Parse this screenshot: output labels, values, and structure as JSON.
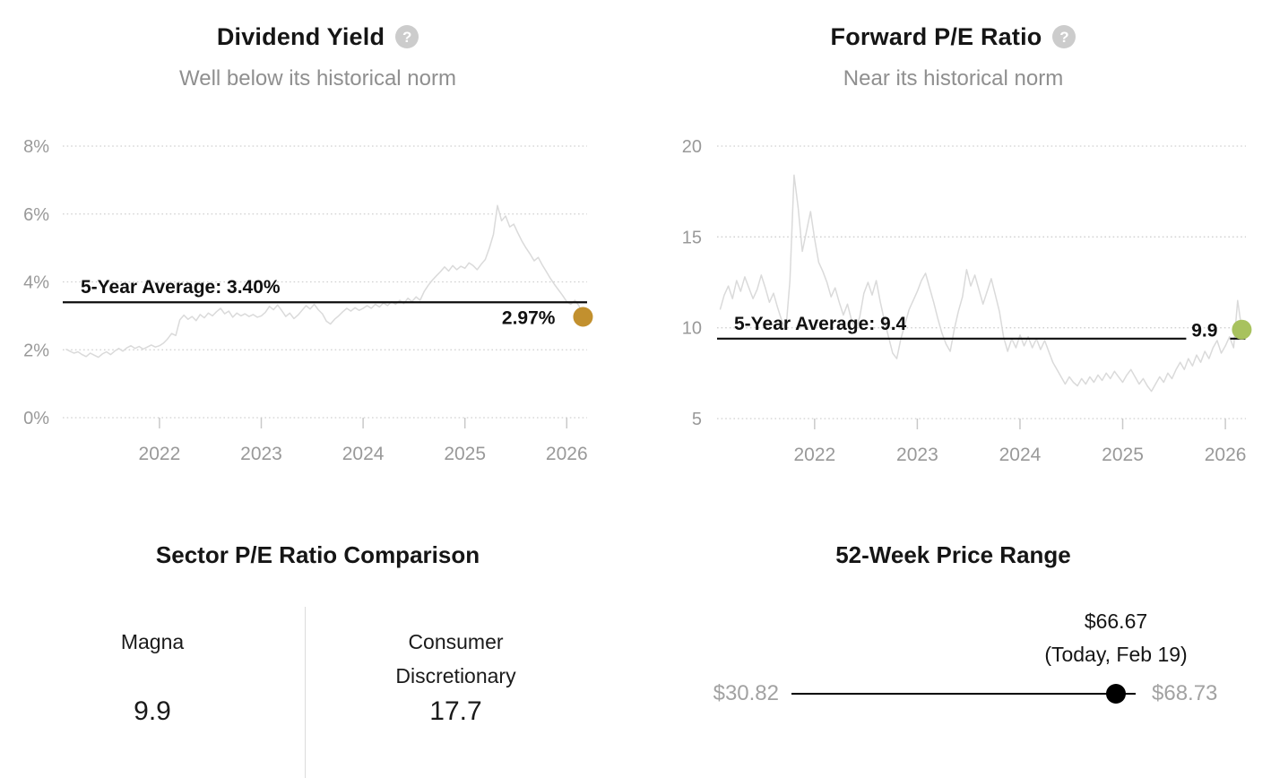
{
  "panels": {
    "dividend_yield": {
      "title": "Dividend Yield",
      "help_glyph": "?",
      "subtitle": "Well below its historical norm"
    },
    "forward_pe": {
      "title": "Forward P/E Ratio",
      "help_glyph": "?",
      "subtitle": "Near its historical norm"
    },
    "sector_comparison": {
      "title": "Sector P/E Ratio Comparison",
      "columns": [
        {
          "label": "Magna",
          "value": "9.9"
        },
        {
          "label": "Consumer Discretionary",
          "value": "17.7"
        }
      ]
    },
    "price_range": {
      "title": "52-Week Price Range",
      "low": "$30.82",
      "high": "$68.73",
      "current_price": "$66.67",
      "current_note": "(Today, Feb 19)"
    }
  },
  "chart_data": [
    {
      "id": "dividend_yield",
      "type": "line",
      "title": "Dividend Yield",
      "subtitle": "Well below its historical norm",
      "ylim": [
        0,
        8
      ],
      "yticks": [
        0,
        2,
        4,
        6,
        8
      ],
      "ytick_labels": [
        "0%",
        "2%",
        "4%",
        "6%",
        "8%"
      ],
      "xlim": [
        2021.05,
        2026.2
      ],
      "xticks": [
        2022,
        2023,
        2024,
        2025,
        2026
      ],
      "xtick_labels": [
        "2022",
        "2023",
        "2024",
        "2025",
        "2026"
      ],
      "grid": "dotted-horizontal",
      "legend": "none",
      "line_color": "#dadada",
      "average": {
        "value": 3.4,
        "label": "5-Year Average: 3.40%"
      },
      "current": {
        "value": 2.97,
        "label": "2.97%",
        "dot_color": "#c2902e"
      },
      "x_start": 2021.08,
      "x_step": 0.04,
      "y": [
        2.02,
        1.96,
        1.9,
        1.94,
        1.86,
        1.8,
        1.9,
        1.84,
        1.78,
        1.88,
        1.94,
        1.86,
        1.96,
        2.04,
        1.96,
        2.06,
        2.12,
        2.04,
        2.1,
        2.02,
        2.08,
        2.14,
        2.08,
        2.12,
        2.2,
        2.32,
        2.48,
        2.42,
        2.88,
        3.02,
        2.9,
        2.98,
        2.86,
        3.04,
        2.94,
        3.08,
        3.0,
        3.12,
        3.22,
        3.06,
        3.14,
        2.96,
        3.08,
        3.0,
        3.06,
        2.98,
        3.04,
        2.96,
        3.0,
        3.1,
        3.28,
        3.18,
        3.32,
        3.16,
        2.98,
        3.08,
        2.92,
        3.02,
        3.16,
        3.3,
        3.2,
        3.34,
        3.18,
        3.06,
        2.84,
        2.76,
        2.9,
        3.0,
        3.12,
        3.22,
        3.14,
        3.24,
        3.16,
        3.22,
        3.3,
        3.22,
        3.34,
        3.26,
        3.38,
        3.3,
        3.42,
        3.34,
        3.46,
        3.36,
        3.52,
        3.42,
        3.56,
        3.46,
        3.72,
        3.9,
        4.05,
        4.18,
        4.3,
        4.44,
        4.32,
        4.48,
        4.36,
        4.46,
        4.4,
        4.56,
        4.48,
        4.36,
        4.52,
        4.66,
        5.0,
        5.4,
        6.25,
        5.8,
        5.94,
        5.62,
        5.7,
        5.44,
        5.2,
        5.0,
        4.82,
        4.62,
        4.72,
        4.5,
        4.3,
        4.1,
        3.92,
        3.76,
        3.6,
        3.42,
        3.34,
        3.46,
        3.3,
        2.97
      ]
    },
    {
      "id": "forward_pe",
      "type": "line",
      "title": "Forward P/E Ratio",
      "subtitle": "Near its historical norm",
      "ylim": [
        5,
        20
      ],
      "yticks": [
        5,
        10,
        15,
        20
      ],
      "ytick_labels": [
        "5",
        "10",
        "15",
        "20"
      ],
      "xlim": [
        2021.05,
        2026.2
      ],
      "xticks": [
        2022,
        2023,
        2024,
        2025,
        2026
      ],
      "xtick_labels": [
        "2022",
        "2023",
        "2024",
        "2025",
        "2026"
      ],
      "grid": "dotted-horizontal",
      "legend": "none",
      "line_color": "#dadada",
      "average": {
        "value": 9.4,
        "label": "5-Year Average: 9.4"
      },
      "current": {
        "value": 9.9,
        "label": "9.9",
        "dot_color": "#a8c25e"
      },
      "x_start": 2021.08,
      "x_step": 0.04,
      "y": [
        11.0,
        11.8,
        12.3,
        11.6,
        12.6,
        12.0,
        12.8,
        12.2,
        11.6,
        12.1,
        12.9,
        12.2,
        11.4,
        11.9,
        11.1,
        10.4,
        9.9,
        12.6,
        18.4,
        16.6,
        14.2,
        15.3,
        16.4,
        14.9,
        13.6,
        13.1,
        12.5,
        11.7,
        12.2,
        11.4,
        10.7,
        11.3,
        10.4,
        9.9,
        10.6,
        11.9,
        12.5,
        11.8,
        12.6,
        11.4,
        10.4,
        9.5,
        8.6,
        8.3,
        9.4,
        10.2,
        11.0,
        11.5,
        12.0,
        12.6,
        13.0,
        12.2,
        11.4,
        10.5,
        9.7,
        9.1,
        8.7,
        9.9,
        10.9,
        11.7,
        13.2,
        12.3,
        12.9,
        12.1,
        11.3,
        12.0,
        12.7,
        11.8,
        10.9,
        9.5,
        8.7,
        9.4,
        8.9,
        9.6,
        9.0,
        9.5,
        8.9,
        9.4,
        8.8,
        9.3,
        8.7,
        8.1,
        7.7,
        7.3,
        6.9,
        7.3,
        7.0,
        6.8,
        7.2,
        6.9,
        7.3,
        7.0,
        7.4,
        7.1,
        7.5,
        7.2,
        7.6,
        7.3,
        7.0,
        7.4,
        7.7,
        7.3,
        6.9,
        7.2,
        6.8,
        6.5,
        6.9,
        7.3,
        7.0,
        7.5,
        7.2,
        7.7,
        8.1,
        7.7,
        8.3,
        7.9,
        8.5,
        8.1,
        8.7,
        8.3,
        8.9,
        9.3,
        8.6,
        9.0,
        9.5,
        8.9,
        11.5,
        9.9
      ]
    },
    {
      "id": "price_range",
      "type": "range",
      "title": "52-Week Price Range",
      "min": 30.82,
      "max": 68.73,
      "current": 66.67,
      "current_note": "(Today, Feb 19)"
    }
  ]
}
